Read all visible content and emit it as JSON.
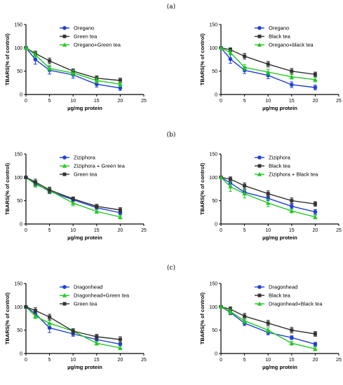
{
  "panel_labels": [
    "(a)",
    "(b)",
    "(c)"
  ],
  "colors": {
    "blue": "#1f3fd6",
    "black": "#333333",
    "green": "#22c922"
  },
  "chart_data": [
    {
      "type": "line",
      "xlabel": "µg/mg protein",
      "ylabel": "TBARS(% of control)",
      "xlim": [
        0,
        25
      ],
      "ylim": [
        0,
        150
      ],
      "xticks": [
        0,
        5,
        10,
        15,
        20,
        25
      ],
      "yticks": [
        0,
        50,
        100,
        150
      ],
      "x": [
        0,
        2,
        5,
        10,
        15,
        20
      ],
      "legend_position": "top-center",
      "series": [
        {
          "name": "Oregano",
          "color": "blue",
          "marker": "circle",
          "values": [
            100,
            75,
            52,
            42,
            22,
            14
          ],
          "err": [
            0,
            10,
            8,
            7,
            6,
            5
          ]
        },
        {
          "name": "Green tea",
          "color": "black",
          "marker": "square",
          "values": [
            100,
            88,
            72,
            50,
            35,
            30
          ],
          "err": [
            0,
            5,
            6,
            5,
            5,
            5
          ]
        },
        {
          "name": "Oregano+Green tea",
          "color": "green",
          "marker": "triangle",
          "values": [
            100,
            85,
            56,
            46,
            30,
            22
          ],
          "err": [
            0,
            5,
            6,
            6,
            5,
            5
          ]
        }
      ]
    },
    {
      "type": "line",
      "xlabel": "µg/mg protein",
      "ylabel": "TBARS(% of control)",
      "xlim": [
        0,
        25
      ],
      "ylim": [
        0,
        150
      ],
      "xticks": [
        0,
        5,
        10,
        15,
        20,
        25
      ],
      "yticks": [
        0,
        50,
        100,
        150
      ],
      "x": [
        0,
        2,
        5,
        10,
        15,
        20
      ],
      "legend_position": "top-center",
      "series": [
        {
          "name": "Oregano",
          "color": "blue",
          "marker": "circle",
          "values": [
            100,
            76,
            52,
            41,
            21,
            15
          ],
          "err": [
            0,
            9,
            7,
            7,
            6,
            5
          ]
        },
        {
          "name": "Black tea",
          "color": "black",
          "marker": "square",
          "values": [
            100,
            96,
            82,
            65,
            50,
            43
          ],
          "err": [
            0,
            4,
            6,
            6,
            6,
            5
          ]
        },
        {
          "name": "Oregano+black tea",
          "color": "green",
          "marker": "triangle",
          "values": [
            100,
            90,
            58,
            48,
            38,
            32
          ],
          "err": [
            0,
            5,
            6,
            6,
            5,
            5
          ]
        }
      ]
    },
    {
      "type": "line",
      "xlabel": "µg/mg protein",
      "ylabel": "TBARS(% of control)",
      "xlim": [
        0,
        25
      ],
      "ylim": [
        0,
        150
      ],
      "xticks": [
        0,
        5,
        10,
        15,
        20,
        25
      ],
      "yticks": [
        0,
        50,
        100,
        150
      ],
      "x": [
        0,
        2,
        5,
        10,
        15,
        20
      ],
      "legend_position": "top-center",
      "series": [
        {
          "name": "Ziziphora",
          "color": "blue",
          "marker": "circle",
          "values": [
            100,
            87,
            70,
            52,
            35,
            24
          ],
          "err": [
            0,
            6,
            5,
            4,
            4,
            4
          ]
        },
        {
          "name": "Ziziphora + Green tea",
          "color": "green",
          "marker": "triangle",
          "values": [
            100,
            85,
            72,
            45,
            27,
            15
          ],
          "err": [
            0,
            6,
            6,
            6,
            4,
            4
          ]
        },
        {
          "name": "Green tea",
          "color": "black",
          "marker": "square",
          "values": [
            100,
            90,
            73,
            54,
            38,
            30
          ],
          "err": [
            0,
            6,
            6,
            4,
            4,
            5
          ]
        }
      ]
    },
    {
      "type": "line",
      "xlabel": "µg/mg protein",
      "ylabel": "TBARS(% of control)",
      "xlim": [
        0,
        25
      ],
      "ylim": [
        0,
        150
      ],
      "xticks": [
        0,
        5,
        10,
        15,
        20,
        25
      ],
      "yticks": [
        0,
        50,
        100,
        150
      ],
      "x": [
        0,
        2,
        5,
        10,
        15,
        20
      ],
      "legend_position": "top-center",
      "series": [
        {
          "name": "Ziziphora",
          "color": "blue",
          "marker": "circle",
          "values": [
            100,
            88,
            68,
            55,
            38,
            26
          ],
          "err": [
            0,
            6,
            5,
            5,
            5,
            5
          ]
        },
        {
          "name": "Black tea",
          "color": "black",
          "marker": "square",
          "values": [
            100,
            96,
            82,
            65,
            50,
            43
          ],
          "err": [
            0,
            5,
            6,
            6,
            6,
            5
          ]
        },
        {
          "name": "Ziziphora + Black tea",
          "color": "green",
          "marker": "triangle",
          "values": [
            100,
            80,
            65,
            45,
            28,
            15
          ],
          "err": [
            0,
            10,
            9,
            8,
            4,
            4
          ]
        }
      ]
    },
    {
      "type": "line",
      "xlabel": "µg/mg protein",
      "ylabel": "TBARS(% of control)",
      "xlim": [
        0,
        25
      ],
      "ylim": [
        0,
        150
      ],
      "xticks": [
        0,
        5,
        10,
        15,
        20,
        25
      ],
      "yticks": [
        0,
        50,
        100,
        150
      ],
      "x": [
        0,
        2,
        5,
        10,
        15,
        20
      ],
      "legend_position": "top-center",
      "series": [
        {
          "name": "Dragonhead",
          "color": "blue",
          "marker": "circle",
          "values": [
            100,
            85,
            55,
            42,
            30,
            20
          ],
          "err": [
            0,
            6,
            10,
            5,
            4,
            4
          ]
        },
        {
          "name": "Dragonhead+Green tea",
          "color": "green",
          "marker": "triangle",
          "values": [
            100,
            80,
            65,
            48,
            22,
            12
          ],
          "err": [
            0,
            5,
            6,
            5,
            4,
            4
          ]
        },
        {
          "name": "Green tea",
          "color": "black",
          "marker": "square",
          "values": [
            100,
            92,
            78,
            48,
            36,
            30
          ],
          "err": [
            0,
            6,
            6,
            5,
            5,
            6
          ]
        }
      ]
    },
    {
      "type": "line",
      "xlabel": "µg/mg protein",
      "ylabel": "TBARS(% of control)",
      "xlim": [
        0,
        25
      ],
      "ylim": [
        0,
        150
      ],
      "xticks": [
        0,
        5,
        10,
        15,
        20,
        25
      ],
      "yticks": [
        0,
        50,
        100,
        150
      ],
      "x": [
        0,
        2,
        5,
        10,
        15,
        20
      ],
      "legend_position": "top-center",
      "series": [
        {
          "name": "Dragonhead",
          "color": "blue",
          "marker": "circle",
          "values": [
            100,
            88,
            65,
            45,
            34,
            20
          ],
          "err": [
            0,
            5,
            5,
            5,
            4,
            4
          ]
        },
        {
          "name": "Black tea",
          "color": "black",
          "marker": "square",
          "values": [
            100,
            95,
            80,
            65,
            50,
            42
          ],
          "err": [
            0,
            5,
            6,
            6,
            6,
            5
          ]
        },
        {
          "name": "Dragonhead+Black tea",
          "color": "green",
          "marker": "triangle",
          "values": [
            100,
            90,
            70,
            50,
            22,
            10
          ],
          "err": [
            0,
            5,
            5,
            5,
            4,
            4
          ]
        }
      ]
    }
  ]
}
